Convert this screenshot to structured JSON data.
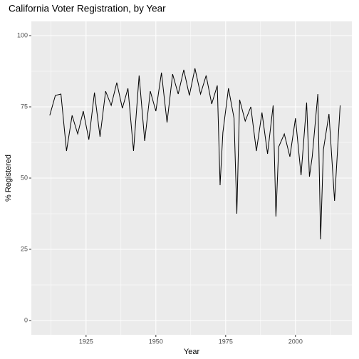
{
  "chart_data": {
    "type": "line",
    "title": "California Voter Registration, by Year",
    "xlabel": "Year",
    "ylabel": "% Registered",
    "x": [
      1912,
      1914,
      1916,
      1918,
      1920,
      1922,
      1924,
      1926,
      1928,
      1930,
      1932,
      1934,
      1936,
      1938,
      1940,
      1942,
      1944,
      1946,
      1948,
      1950,
      1952,
      1954,
      1956,
      1958,
      1960,
      1962,
      1964,
      1966,
      1968,
      1970,
      1972,
      1973,
      1974,
      1976,
      1978,
      1979,
      1980,
      1982,
      1984,
      1986,
      1988,
      1990,
      1992,
      1993,
      1994,
      1996,
      1998,
      2000,
      2002,
      2004,
      2005,
      2006,
      2008,
      2009,
      2010,
      2012,
      2014,
      2016
    ],
    "series": [
      {
        "name": "% Registered",
        "color": "#000000",
        "values": [
          72,
          79,
          79.5,
          59.5,
          72,
          65.5,
          73.5,
          63.5,
          80,
          64.5,
          80.5,
          75.5,
          83.5,
          74.5,
          81.5,
          59.5,
          86,
          63,
          80.5,
          73.5,
          87,
          69.5,
          86.5,
          79.5,
          88,
          79,
          88.5,
          79.5,
          86,
          76,
          82.5,
          47.5,
          66,
          81.5,
          71,
          37.5,
          77.5,
          70,
          75,
          59.5,
          73,
          58.5,
          75.5,
          36.5,
          61,
          65.5,
          57.5,
          71,
          51,
          76.5,
          50.5,
          57.5,
          79.5,
          28.5,
          60,
          72.5,
          42,
          75.5
        ]
      }
    ],
    "xlim": [
      1905.4,
      2020.2
    ],
    "xticks": [
      1925,
      1950,
      1975,
      2000
    ],
    "xminorticks": [
      1912.5,
      1937.5,
      1962.5,
      1987.5,
      2012.5
    ],
    "ylim": [
      -5,
      105
    ],
    "yticks": [
      0,
      25,
      50,
      75,
      100
    ],
    "yminorticks": [
      12.5,
      37.5,
      62.5,
      87.5
    ],
    "grid": true
  }
}
